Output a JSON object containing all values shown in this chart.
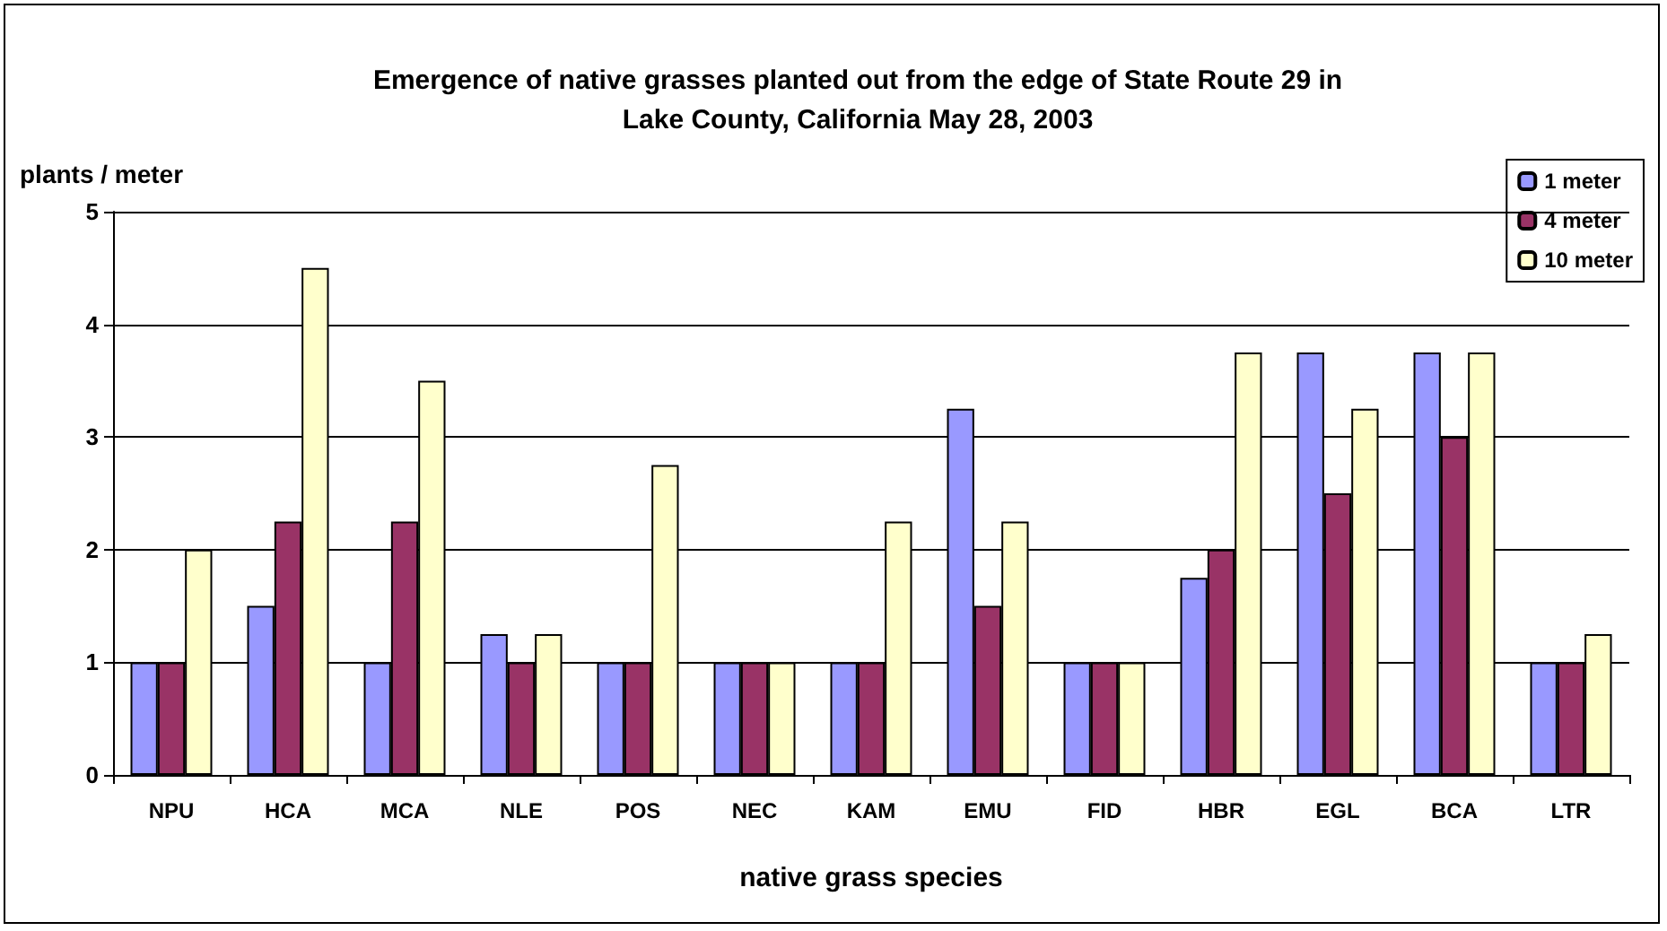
{
  "chart_data": {
    "type": "bar",
    "title": "Emergence of native grasses planted out from the edge of State Route 29 in\nLake County, California May 28, 2003",
    "xlabel": "native grass species",
    "ylabel": "plants / meter",
    "categories": [
      "NPU",
      "HCA",
      "MCA",
      "NLE",
      "POS",
      "NEC",
      "KAM",
      "EMU",
      "FID",
      "HBR",
      "EGL",
      "BCA",
      "LTR"
    ],
    "series": [
      {
        "name": "1 meter",
        "color": "#9999ff",
        "values": [
          1,
          1.5,
          1,
          1.25,
          1,
          1,
          1,
          3.25,
          1,
          1.75,
          3.75,
          3.75,
          1
        ]
      },
      {
        "name": "4 meter",
        "color": "#993366",
        "values": [
          1,
          2.25,
          2.25,
          1,
          1,
          1,
          1,
          1.5,
          1,
          2,
          2.5,
          3,
          1
        ]
      },
      {
        "name": "10 meter",
        "color": "#ffffcc",
        "values": [
          2,
          4.5,
          3.5,
          1.25,
          2.75,
          1,
          2.25,
          2.25,
          1,
          3.75,
          3.25,
          3.75,
          1.25
        ]
      }
    ],
    "ylim": [
      0,
      5
    ],
    "yticks": [
      0,
      1,
      2,
      3,
      4,
      5
    ],
    "grid": "y",
    "legend": "top right"
  }
}
